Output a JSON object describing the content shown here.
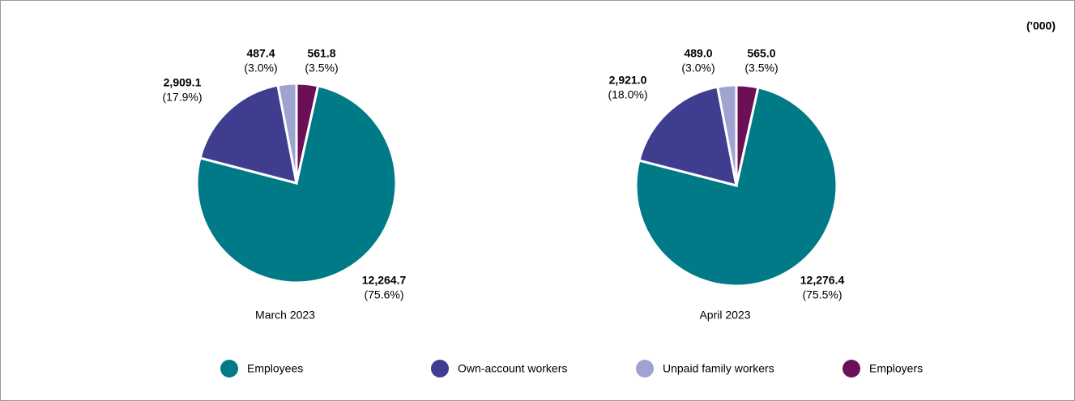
{
  "unit_note": "('000)",
  "chart_data": [
    {
      "type": "pie",
      "title": "March 2023",
      "categories": [
        "Employees",
        "Own-account workers",
        "Unpaid family workers",
        "Employers"
      ],
      "colors": [
        "#007a87",
        "#3f3d8f",
        "#9fa3d0",
        "#6b0f57"
      ],
      "values": [
        12264.7,
        2909.1,
        487.4,
        561.8
      ],
      "value_labels": [
        "12,264.7",
        "2,909.1",
        "487.4",
        "561.8"
      ],
      "percents": [
        75.6,
        17.9,
        3.0,
        3.5
      ],
      "percent_labels": [
        "(75.6%)",
        "(17.9%)",
        "(3.0%)",
        "(3.5%)"
      ]
    },
    {
      "type": "pie",
      "title": "April 2023",
      "categories": [
        "Employees",
        "Own-account workers",
        "Unpaid family workers",
        "Employers"
      ],
      "colors": [
        "#007a87",
        "#3f3d8f",
        "#9fa3d0",
        "#6b0f57"
      ],
      "values": [
        12276.4,
        2921.0,
        489.0,
        565.0
      ],
      "value_labels": [
        "12,276.4",
        "2,921.0",
        "489.0",
        "565.0"
      ],
      "percents": [
        75.5,
        18.0,
        3.0,
        3.5
      ],
      "percent_labels": [
        "(75.5%)",
        "(18.0%)",
        "(3.0%)",
        "(3.5%)"
      ]
    }
  ]
}
